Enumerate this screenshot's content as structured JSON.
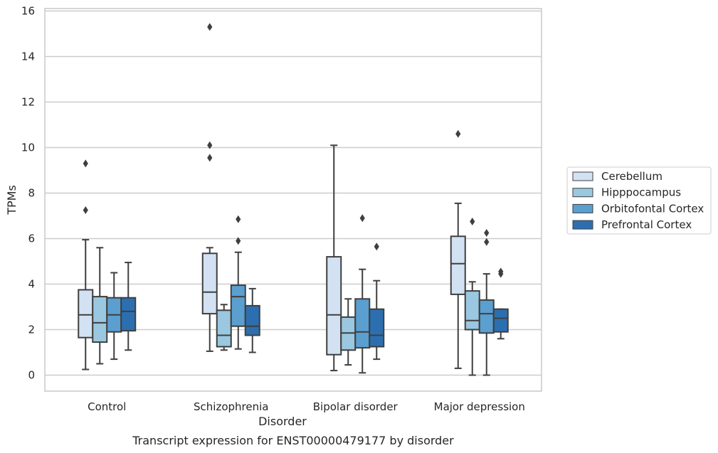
{
  "chart_data": {
    "type": "box",
    "xlabel": "Disorder",
    "ylabel": "TPMs",
    "caption": "Transcript expression for ENST00000479177 by disorder",
    "ylim": [
      -0.7,
      16.1
    ],
    "yticks": [
      0,
      2,
      4,
      6,
      8,
      10,
      12,
      14,
      16
    ],
    "grid": "horizontal",
    "legend_position": "right",
    "categories": [
      "Control",
      "Schizophrenia",
      "Bipolar disorder",
      "Major depression"
    ],
    "series": [
      {
        "name": "Cerebellum",
        "color": "#d2e2f3",
        "boxes": [
          {
            "whisker_low": 0.25,
            "q1": 1.65,
            "median": 2.65,
            "q3": 3.75,
            "whisker_high": 5.95,
            "outliers": [
              7.25,
              9.3
            ]
          },
          {
            "whisker_low": 1.05,
            "q1": 2.7,
            "median": 3.65,
            "q3": 5.35,
            "whisker_high": 5.6,
            "outliers": [
              9.55,
              10.1,
              15.3
            ]
          },
          {
            "whisker_low": 0.2,
            "q1": 0.9,
            "median": 2.65,
            "q3": 5.2,
            "whisker_high": 10.1,
            "outliers": []
          },
          {
            "whisker_low": 0.3,
            "q1": 3.55,
            "median": 4.9,
            "q3": 6.1,
            "whisker_high": 7.55,
            "outliers": [
              10.6
            ]
          }
        ]
      },
      {
        "name": "Hipppocampus",
        "color": "#9ac8e0",
        "boxes": [
          {
            "whisker_low": 0.5,
            "q1": 1.45,
            "median": 2.3,
            "q3": 3.45,
            "whisker_high": 5.6,
            "outliers": []
          },
          {
            "whisker_low": 1.1,
            "q1": 1.25,
            "median": 1.75,
            "q3": 2.85,
            "whisker_high": 3.1,
            "outliers": []
          },
          {
            "whisker_low": 0.45,
            "q1": 1.1,
            "median": 1.85,
            "q3": 2.55,
            "whisker_high": 3.35,
            "outliers": []
          },
          {
            "whisker_low": 0.0,
            "q1": 2.0,
            "median": 2.4,
            "q3": 3.7,
            "whisker_high": 4.1,
            "outliers": [
              6.75
            ]
          }
        ]
      },
      {
        "name": "Orbitofontal Cortex",
        "color": "#5a9fcf",
        "boxes": [
          {
            "whisker_low": 0.7,
            "q1": 1.9,
            "median": 2.65,
            "q3": 3.4,
            "whisker_high": 4.5,
            "outliers": []
          },
          {
            "whisker_low": 1.15,
            "q1": 2.15,
            "median": 3.45,
            "q3": 3.95,
            "whisker_high": 5.4,
            "outliers": [
              5.9,
              6.85
            ]
          },
          {
            "whisker_low": 0.1,
            "q1": 1.2,
            "median": 1.9,
            "q3": 3.35,
            "whisker_high": 4.65,
            "outliers": [
              6.9
            ]
          },
          {
            "whisker_low": 0.0,
            "q1": 1.85,
            "median": 2.7,
            "q3": 3.3,
            "whisker_high": 4.45,
            "outliers": [
              5.85,
              6.25
            ]
          }
        ]
      },
      {
        "name": "Prefrontal Cortex",
        "color": "#2c6fb0",
        "boxes": [
          {
            "whisker_low": 1.1,
            "q1": 1.95,
            "median": 2.8,
            "q3": 3.4,
            "whisker_high": 4.95,
            "outliers": []
          },
          {
            "whisker_low": 1.0,
            "q1": 1.75,
            "median": 2.15,
            "q3": 3.05,
            "whisker_high": 3.8,
            "outliers": []
          },
          {
            "whisker_low": 0.7,
            "q1": 1.25,
            "median": 1.75,
            "q3": 2.9,
            "whisker_high": 4.15,
            "outliers": [
              5.65
            ]
          },
          {
            "whisker_low": 1.6,
            "q1": 1.9,
            "median": 2.5,
            "q3": 2.9,
            "whisker_high": 2.9,
            "outliers": [
              4.45,
              4.55
            ]
          }
        ]
      }
    ]
  }
}
